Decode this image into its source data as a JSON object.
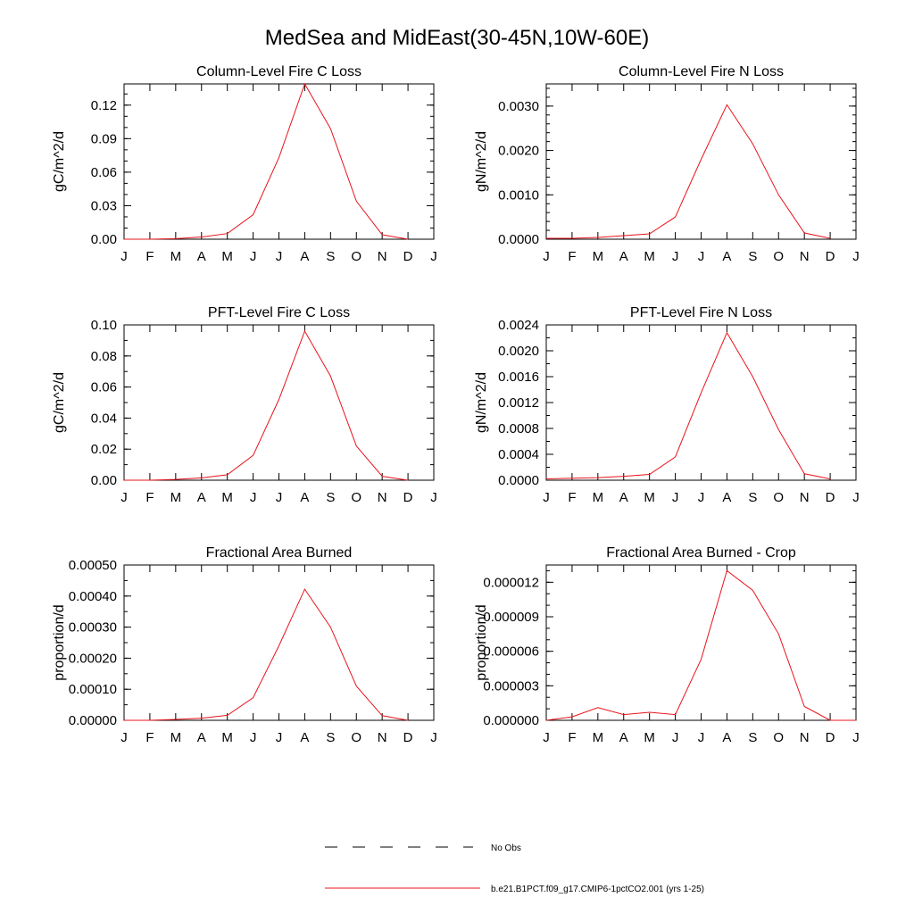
{
  "title": "MedSea and MidEast(30-45N,10W-60E)",
  "months": [
    "J",
    "F",
    "M",
    "A",
    "M",
    "J",
    "J",
    "A",
    "S",
    "O",
    "N",
    "D",
    "J"
  ],
  "line_color": "#e8141c",
  "legend": [
    {
      "label": "No Obs",
      "style": "dashed",
      "color": "#000000"
    },
    {
      "label": "b.e21.B1PCT.f09_g17.CMIP6-1pctCO2.001 (yrs 1-25)",
      "style": "solid",
      "color": "#e8141c"
    }
  ],
  "chart_data": [
    {
      "type": "line",
      "title": "Column-Level Fire C Loss",
      "ylabel": "gC/m^2/d",
      "ylim": [
        0,
        0.139
      ],
      "yticks": [
        0,
        0.03,
        0.06,
        0.09,
        0.12
      ],
      "ytick_labels": [
        "0.00",
        "0.03",
        "0.06",
        "0.09",
        "0.12"
      ],
      "yminor_step": 0.01,
      "values": [
        0.0,
        0.0,
        0.0005,
        0.002,
        0.005,
        0.022,
        0.073,
        0.139,
        0.099,
        0.034,
        0.004,
        0.0
      ]
    },
    {
      "type": "line",
      "title": "Column-Level Fire N Loss",
      "ylabel": "gN/m^2/d",
      "ylim": [
        0,
        0.0035
      ],
      "yticks": [
        0,
        0.001,
        0.002,
        0.003
      ],
      "ytick_labels": [
        "0.0000",
        "0.0010",
        "0.0020",
        "0.0030"
      ],
      "yminor_step": 0.0002,
      "values": [
        2e-05,
        2e-05,
        4e-05,
        8e-05,
        0.00012,
        0.0005,
        0.0018,
        0.00303,
        0.00215,
        0.001,
        0.00014,
        2e-05
      ]
    },
    {
      "type": "line",
      "title": "PFT-Level Fire C Loss",
      "ylabel": "gC/m^2/d",
      "ylim": [
        0,
        0.1
      ],
      "yticks": [
        0,
        0.02,
        0.04,
        0.06,
        0.08,
        0.1
      ],
      "ytick_labels": [
        "0.00",
        "0.02",
        "0.04",
        "0.06",
        "0.08",
        "0.10"
      ],
      "yminor_step": 0.01,
      "values": [
        0.0,
        0.0,
        0.0005,
        0.0015,
        0.0035,
        0.016,
        0.052,
        0.096,
        0.067,
        0.022,
        0.0025,
        0.0
      ]
    },
    {
      "type": "line",
      "title": "PFT-Level Fire N Loss",
      "ylabel": "gN/m^2/d",
      "ylim": [
        0,
        0.0024
      ],
      "yticks": [
        0,
        0.0004,
        0.0008,
        0.0012,
        0.0016,
        0.002,
        0.0024
      ],
      "ytick_labels": [
        "0.0000",
        "0.0004",
        "0.0008",
        "0.0012",
        "0.0016",
        "0.0020",
        "0.0024"
      ],
      "yminor_step": 0.0002,
      "values": [
        2e-05,
        3e-05,
        4e-05,
        6e-05,
        9e-05,
        0.00036,
        0.00135,
        0.00228,
        0.0016,
        0.00078,
        0.0001,
        2e-05
      ]
    },
    {
      "type": "line",
      "title": "Fractional Area Burned",
      "ylabel": "proportion/d",
      "ylim": [
        0,
        0.0005
      ],
      "yticks": [
        0,
        0.0001,
        0.0002,
        0.0003,
        0.0004,
        0.0005
      ],
      "ytick_labels": [
        "0.00000",
        "0.00010",
        "0.00020",
        "0.00030",
        "0.00040",
        "0.00050"
      ],
      "yminor_step": 5e-05,
      "values": [
        0.0,
        0.0,
        3e-06,
        7e-06,
        1.6e-05,
        7.3e-05,
        0.00024,
        0.000422,
        0.0003,
        0.00011,
        1.5e-05,
        0.0
      ]
    },
    {
      "type": "line",
      "title": "Fractional Area Burned - Crop",
      "ylabel": "proportion/d",
      "ylim": [
        0,
        1.35e-05
      ],
      "yticks": [
        0,
        3e-06,
        6e-06,
        9e-06,
        1.2e-05
      ],
      "ytick_labels": [
        "0.000000",
        "0.000003",
        "0.000006",
        "0.000009",
        "0.000012"
      ],
      "yminor_step": 1e-06,
      "values": [
        0.0,
        3e-07,
        1.1e-06,
        5e-07,
        7e-07,
        5e-07,
        5.3e-06,
        1.3e-05,
        1.13e-05,
        7.5e-06,
        1.2e-06,
        0.0,
        0.0
      ]
    }
  ]
}
